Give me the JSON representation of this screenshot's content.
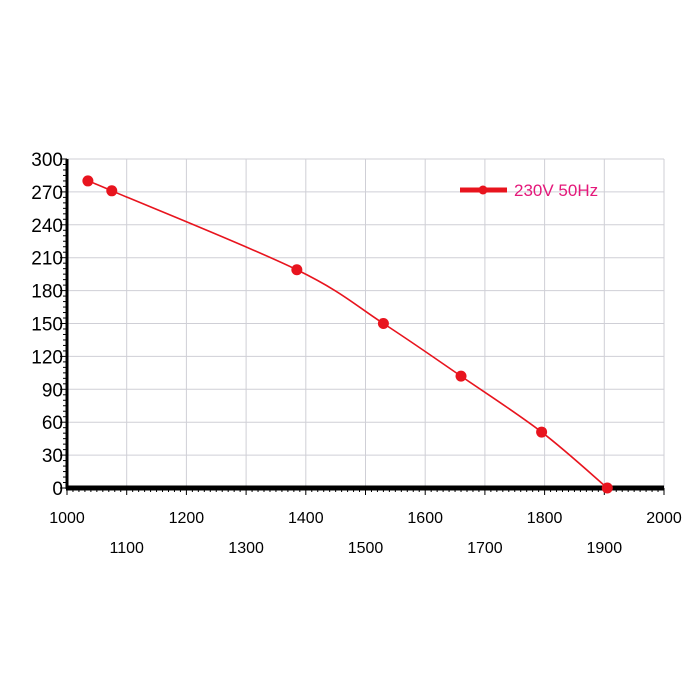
{
  "chart_data": {
    "type": "line",
    "title": "",
    "xlabel": "",
    "ylabel": "",
    "xlim": [
      1000,
      2000
    ],
    "ylim": [
      0,
      300
    ],
    "x_ticks": [
      "1000",
      "1100",
      "1200",
      "1300",
      "1400",
      "1500",
      "1600",
      "1700",
      "1800",
      "1900",
      "2000"
    ],
    "y_ticks": [
      "0",
      "30",
      "60",
      "90",
      "120",
      "150",
      "180",
      "210",
      "240",
      "270",
      "300"
    ],
    "grid": true,
    "legend_position": "top-right",
    "series": [
      {
        "name": "230V 50Hz",
        "color": "#e8141e",
        "x": [
          1035,
          1075,
          1385,
          1530,
          1660,
          1795,
          1905
        ],
        "y": [
          280,
          271,
          199,
          150,
          102,
          51,
          0
        ]
      }
    ]
  }
}
